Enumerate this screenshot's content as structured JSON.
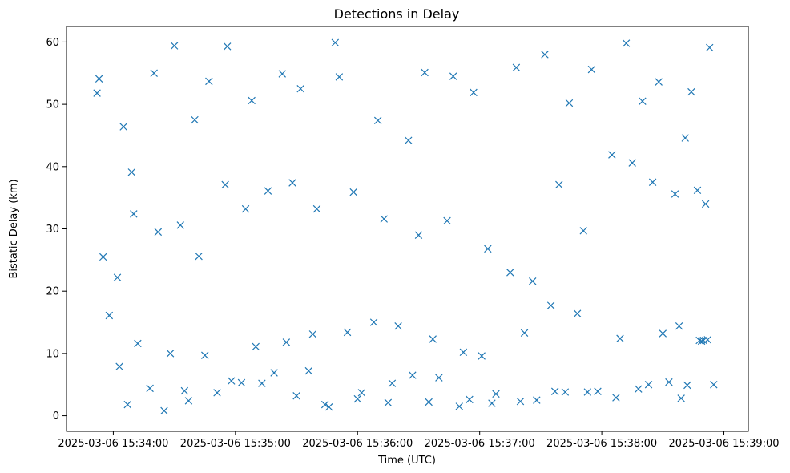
{
  "chart_data": {
    "type": "scatter",
    "title": "Detections in Delay",
    "xlabel": "Time (UTC)",
    "ylabel": "Bistatic Delay (km)",
    "x_axis_type": "datetime",
    "xlim": [
      "2025-03-06 15:33:37",
      "2025-03-06 15:39:12"
    ],
    "ylim": [
      -2.5,
      62.5
    ],
    "x_ticks": [
      "2025-03-06 15:34:00",
      "2025-03-06 15:35:00",
      "2025-03-06 15:36:00",
      "2025-03-06 15:37:00",
      "2025-03-06 15:38:00",
      "2025-03-06 15:39:00"
    ],
    "x_tick_labels": [
      "2025-03-06 15:34:00",
      "2025-03-06 15:35:00",
      "2025-03-06 15:36:00",
      "2025-03-06 15:37:00",
      "2025-03-06 15:38:00",
      "2025-03-06 15:39:00"
    ],
    "y_ticks": [
      0,
      10,
      20,
      30,
      40,
      50,
      60
    ],
    "y_tick_labels": [
      "0",
      "10",
      "20",
      "30",
      "40",
      "50",
      "60"
    ],
    "grid": false,
    "marker": "x",
    "marker_color": "#1f77b4",
    "series": [
      {
        "x": [
          "2025-03-06 15:33:52",
          "2025-03-06 15:33:53",
          "2025-03-06 15:34:05",
          "2025-03-06 15:34:09",
          "2025-03-06 15:34:20",
          "2025-03-06 15:34:30",
          "2025-03-06 15:34:40",
          "2025-03-06 15:34:47",
          "2025-03-06 15:34:56",
          "2025-03-06 15:35:08",
          "2025-03-06 15:35:23",
          "2025-03-06 15:35:32",
          "2025-03-06 15:35:49",
          "2025-03-06 15:35:51",
          "2025-03-06 15:36:10",
          "2025-03-06 15:36:25",
          "2025-03-06 15:36:33",
          "2025-03-06 15:36:47",
          "2025-03-06 15:36:57",
          "2025-03-06 15:37:18",
          "2025-03-06 15:37:32",
          "2025-03-06 15:37:44",
          "2025-03-06 15:37:55",
          "2025-03-06 15:38:12",
          "2025-03-06 15:38:20",
          "2025-03-06 15:38:28",
          "2025-03-06 15:38:41",
          "2025-03-06 15:38:44",
          "2025-03-06 15:38:53",
          "2025-03-06 15:33:55",
          "2025-03-06 15:34:02",
          "2025-03-06 15:34:10",
          "2025-03-06 15:34:22",
          "2025-03-06 15:34:33",
          "2025-03-06 15:34:42",
          "2025-03-06 15:34:55",
          "2025-03-06 15:35:05",
          "2025-03-06 15:35:16",
          "2025-03-06 15:35:28",
          "2025-03-06 15:35:40",
          "2025-03-06 15:35:58",
          "2025-03-06 15:36:13",
          "2025-03-06 15:36:30",
          "2025-03-06 15:36:44",
          "2025-03-06 15:37:04",
          "2025-03-06 15:37:15",
          "2025-03-06 15:37:26",
          "2025-03-06 15:37:39",
          "2025-03-06 15:37:51",
          "2025-03-06 15:38:05",
          "2025-03-06 15:38:15",
          "2025-03-06 15:38:25",
          "2025-03-06 15:38:36",
          "2025-03-06 15:38:47",
          "2025-03-06 15:38:51",
          "2025-03-06 15:33:58",
          "2025-03-06 15:34:12",
          "2025-03-06 15:34:28",
          "2025-03-06 15:34:45",
          "2025-03-06 15:35:10",
          "2025-03-06 15:35:25",
          "2025-03-06 15:35:38",
          "2025-03-06 15:35:55",
          "2025-03-06 15:36:08",
          "2025-03-06 15:36:20",
          "2025-03-06 15:36:37",
          "2025-03-06 15:36:52",
          "2025-03-06 15:37:01",
          "2025-03-06 15:37:22",
          "2025-03-06 15:37:35",
          "2025-03-06 15:37:48",
          "2025-03-06 15:38:09",
          "2025-03-06 15:38:30",
          "2025-03-06 15:38:38",
          "2025-03-06 15:38:48",
          "2025-03-06 15:34:03",
          "2025-03-06 15:34:18",
          "2025-03-06 15:34:37",
          "2025-03-06 15:34:51",
          "2025-03-06 15:35:03",
          "2025-03-06 15:35:19",
          "2025-03-06 15:35:36",
          "2025-03-06 15:35:46",
          "2025-03-06 15:36:02",
          "2025-03-06 15:36:17",
          "2025-03-06 15:36:27",
          "2025-03-06 15:36:40",
          "2025-03-06 15:36:55",
          "2025-03-06 15:37:08",
          "2025-03-06 15:37:28",
          "2025-03-06 15:37:42",
          "2025-03-06 15:37:58",
          "2025-03-06 15:38:18",
          "2025-03-06 15:38:33",
          "2025-03-06 15:38:42",
          "2025-03-06 15:38:49",
          "2025-03-06 15:38:50",
          "2025-03-06 15:38:52",
          "2025-03-06 15:34:07",
          "2025-03-06 15:34:25",
          "2025-03-06 15:34:35",
          "2025-03-06 15:34:58",
          "2025-03-06 15:35:13",
          "2025-03-06 15:35:30",
          "2025-03-06 15:35:44",
          "2025-03-06 15:36:00",
          "2025-03-06 15:36:15",
          "2025-03-06 15:36:35",
          "2025-03-06 15:36:50",
          "2025-03-06 15:37:06",
          "2025-03-06 15:37:20",
          "2025-03-06 15:37:37",
          "2025-03-06 15:37:53",
          "2025-03-06 15:38:07",
          "2025-03-06 15:38:23",
          "2025-03-06 15:38:39",
          "2025-03-06 15:38:55"
        ],
        "y": [
          51.8,
          54.1,
          46.4,
          39.1,
          55.0,
          59.4,
          47.5,
          53.7,
          59.3,
          50.6,
          54.9,
          52.5,
          59.9,
          54.4,
          47.4,
          44.2,
          55.1,
          54.5,
          51.9,
          55.9,
          58.0,
          50.2,
          55.6,
          59.8,
          50.5,
          53.6,
          44.6,
          52.0,
          59.1,
          25.5,
          22.2,
          32.4,
          29.5,
          30.6,
          25.6,
          37.1,
          33.2,
          36.1,
          37.4,
          33.2,
          35.9,
          31.6,
          29.0,
          31.3,
          26.8,
          23.0,
          21.6,
          37.1,
          29.7,
          41.9,
          40.6,
          37.5,
          35.6,
          36.2,
          34.0,
          16.1,
          11.6,
          10.0,
          9.7,
          11.1,
          11.8,
          13.1,
          13.4,
          15.0,
          14.4,
          12.3,
          10.2,
          9.6,
          13.3,
          17.7,
          16.4,
          12.4,
          13.2,
          14.4,
          12.1,
          7.9,
          4.4,
          2.4,
          3.7,
          5.3,
          6.9,
          7.2,
          1.4,
          3.7,
          5.2,
          6.5,
          6.1,
          2.6,
          3.5,
          2.5,
          3.8,
          3.9,
          4.3,
          5.4,
          4.9,
          12.0,
          12.1,
          12.2,
          1.8,
          0.8,
          4.0,
          5.6,
          5.2,
          3.2,
          1.8,
          2.7,
          2.1,
          2.2,
          1.5,
          2.0,
          2.3,
          3.9,
          3.8,
          2.9,
          5.0,
          2.8,
          5.0
        ]
      }
    ]
  }
}
